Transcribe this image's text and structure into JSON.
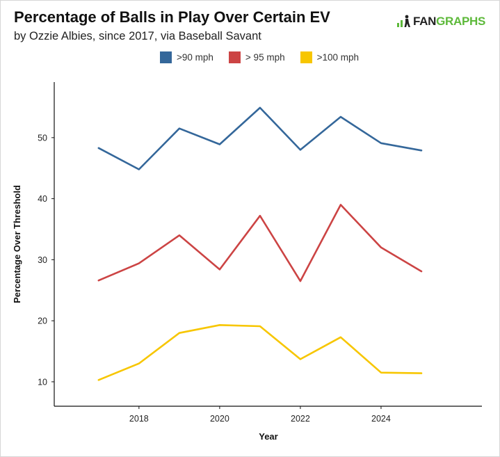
{
  "header": {
    "title": "Percentage of Balls in Play Over Certain EV",
    "subtitle": "by Ozzie Albies, since 2017, via Baseball Savant",
    "logo": {
      "icon": "fangraphs-logo-icon",
      "text_dark": "FAN",
      "text_green": "GRAPHS",
      "colors": {
        "dark": "#222222",
        "green": "#5db93a"
      }
    }
  },
  "chart_data": {
    "type": "line",
    "title": "Percentage of Balls in Play Over Certain EV",
    "subtitle": "by Ozzie Albies, since 2017, via Baseball Savant",
    "xlabel": "Year",
    "ylabel": "Percentage Over Threshold",
    "x": [
      2017,
      2018,
      2019,
      2020,
      2021,
      2022,
      2023,
      2024,
      2025
    ],
    "xticks": [
      2018,
      2020,
      2022,
      2024
    ],
    "xlim": [
      2015.9,
      2026.5
    ],
    "yticks": [
      10,
      20,
      30,
      40,
      50
    ],
    "ylim": [
      6.0,
      59.1
    ],
    "grid": false,
    "legend_position": "top",
    "series": [
      {
        "name": ">90 mph",
        "color": "#34679a",
        "values": [
          48.3,
          44.8,
          51.5,
          48.9,
          54.9,
          48.0,
          53.4,
          49.1,
          47.9
        ]
      },
      {
        "name": "> 95 mph",
        "color": "#cc4444",
        "values": [
          26.6,
          29.4,
          34.0,
          28.4,
          37.2,
          26.5,
          39.0,
          32.0,
          28.1
        ]
      },
      {
        "name": ">100 mph",
        "color": "#f7c600",
        "values": [
          10.3,
          13.0,
          18.0,
          19.3,
          19.1,
          13.7,
          17.3,
          11.5,
          11.4
        ]
      }
    ]
  }
}
